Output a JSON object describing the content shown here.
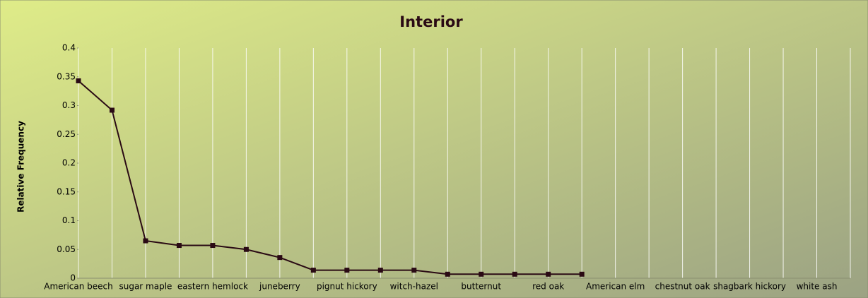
{
  "chart_data": {
    "type": "line",
    "title": "Interior",
    "y_label": "Relative Frequency",
    "categories": [
      "American beech",
      null,
      "sugar maple",
      null,
      "eastern hemlock",
      null,
      "juneberry",
      null,
      "pignut hickory",
      null,
      "witch-hazel",
      null,
      "butternut",
      null,
      "red oak",
      null,
      "American elm",
      null,
      "chestnut oak",
      null,
      "shagbark hickory",
      null,
      "white ash",
      null
    ],
    "series": [
      {
        "name": "Interior",
        "color": "#2a0a14",
        "values": [
          0.343,
          0.292,
          0.065,
          0.057,
          0.057,
          0.05,
          0.036,
          0.014,
          0.014,
          0.014,
          0.014,
          0.007,
          0.007,
          0.007,
          0.007,
          0.007,
          null,
          null,
          null,
          null,
          null,
          null,
          null,
          null
        ]
      }
    ],
    "ylim": [
      0,
      0.4
    ],
    "yticks": [
      0,
      0.05,
      0.1,
      0.15,
      0.2,
      0.25,
      0.3,
      0.35,
      0.4
    ],
    "grid": "x"
  }
}
